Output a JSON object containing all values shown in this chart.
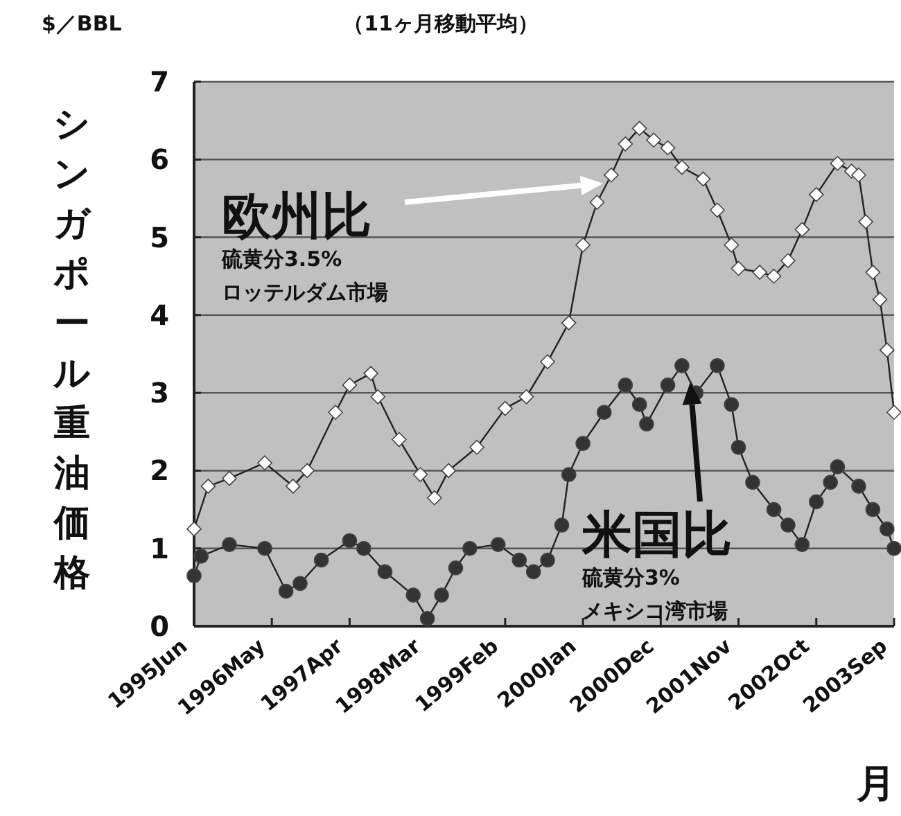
{
  "chart_data": {
    "type": "line",
    "subtitle": "（11ヶ月移動平均）",
    "ylabel": "シンガポール重油価格",
    "xlabel": "月",
    "annotations": [
      "$／BBL",
      "硫黄分3.5%",
      "ロッテルダム市場",
      "硫黄分3%",
      "メキシコ湾市場"
    ],
    "xlim": [
      "1995-06",
      "2003-09"
    ],
    "xticks": [
      {
        "value": "1995-06",
        "label": "1995Jun"
      },
      {
        "value": "1996-05",
        "label": "1996May"
      },
      {
        "value": "1997-04",
        "label": "1997Apr"
      },
      {
        "value": "1998-03",
        "label": "1998Mar"
      },
      {
        "value": "1999-02",
        "label": "1999Feb"
      },
      {
        "value": "2000-01",
        "label": "2000Jan"
      },
      {
        "value": "2000-12",
        "label": "2000Dec"
      },
      {
        "value": "2001-11",
        "label": "2001Nov"
      },
      {
        "value": "2002-10",
        "label": "2002Oct"
      },
      {
        "value": "2003-09",
        "label": "2003Sep"
      }
    ],
    "ylim": [
      0,
      7
    ],
    "yticks": [
      0,
      1,
      2,
      3,
      4,
      5,
      6,
      7
    ],
    "grid": "y",
    "legend": "top left",
    "line_style": "solid",
    "series": [
      {
        "name": "欧州比",
        "color": "#ffffff",
        "marker": "diamond",
        "x": [
          "1995-06",
          "1995-08",
          "1995-11",
          "1996-04",
          "1996-08",
          "1996-10",
          "1997-02",
          "1997-04",
          "1997-07",
          "1997-08",
          "1997-11",
          "1998-02",
          "1998-04",
          "1998-06",
          "1998-10",
          "1999-02",
          "1999-05",
          "1999-08",
          "1999-11",
          "2000-01",
          "2000-03",
          "2000-05",
          "2000-07",
          "2000-09",
          "2000-11",
          "2001-01",
          "2001-03",
          "2001-06",
          "2001-08",
          "2001-10",
          "2001-11",
          "2002-02",
          "2002-04",
          "2002-06",
          "2002-08",
          "2002-10",
          "2003-01",
          "2003-03",
          "2003-04",
          "2003-05",
          "2003-06",
          "2003-07",
          "2003-08",
          "2003-09"
        ],
        "values": [
          1.25,
          1.8,
          1.9,
          2.1,
          1.8,
          2.0,
          2.75,
          3.1,
          3.25,
          2.95,
          2.4,
          1.95,
          1.65,
          2.0,
          2.3,
          2.8,
          2.95,
          3.4,
          3.9,
          4.9,
          5.45,
          5.8,
          6.2,
          6.4,
          6.25,
          6.15,
          5.9,
          5.75,
          5.35,
          4.9,
          4.6,
          4.55,
          4.5,
          4.7,
          5.1,
          5.55,
          5.95,
          5.85,
          5.8,
          5.2,
          4.55,
          4.2,
          3.55,
          2.75
        ]
      },
      {
        "name": "米国比",
        "color": "#333333",
        "marker": "circle",
        "x": [
          "1995-06",
          "1995-07",
          "1995-11",
          "1996-04",
          "1996-07",
          "1996-09",
          "1996-12",
          "1997-04",
          "1997-06",
          "1997-09",
          "1998-01",
          "1998-03",
          "1998-05",
          "1998-07",
          "1998-09",
          "1999-01",
          "1999-04",
          "1999-06",
          "1999-08",
          "1999-10",
          "1999-11",
          "2000-01",
          "2000-04",
          "2000-07",
          "2000-09",
          "2000-10",
          "2001-01",
          "2001-03",
          "2001-05",
          "2001-08",
          "2001-10",
          "2001-11",
          "2002-01",
          "2002-04",
          "2002-06",
          "2002-08",
          "2002-10",
          "2002-12",
          "2003-01",
          "2003-04",
          "2003-06",
          "2003-08",
          "2003-09"
        ],
        "values": [
          0.65,
          0.9,
          1.05,
          1.0,
          0.45,
          0.55,
          0.85,
          1.1,
          1.0,
          0.7,
          0.4,
          0.1,
          0.4,
          0.75,
          1.0,
          1.05,
          0.85,
          0.7,
          0.85,
          1.3,
          1.95,
          2.35,
          2.75,
          3.1,
          2.85,
          2.6,
          3.1,
          3.35,
          3.0,
          3.35,
          2.85,
          2.3,
          1.85,
          1.5,
          1.3,
          1.05,
          1.6,
          1.85,
          2.05,
          1.8,
          1.5,
          1.25,
          1.0
        ]
      }
    ]
  }
}
